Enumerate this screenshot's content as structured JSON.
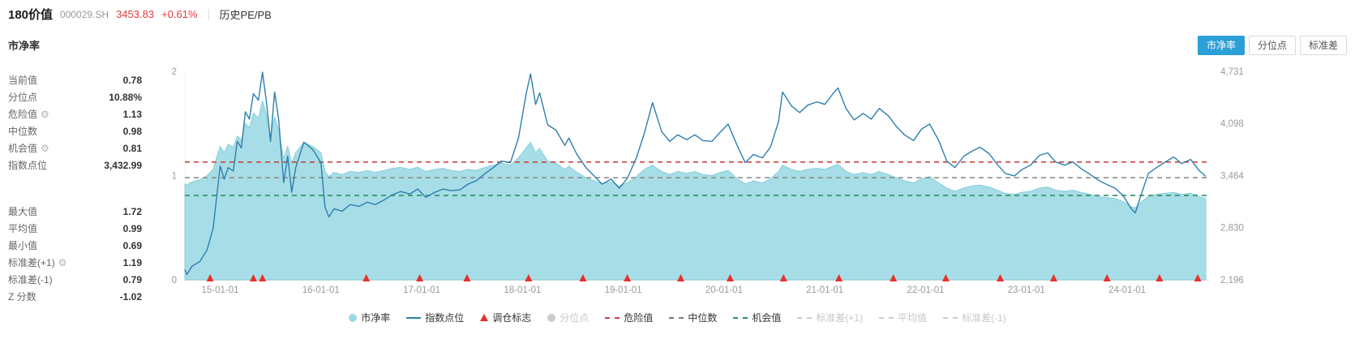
{
  "header": {
    "title": "180价值",
    "code": "000029.SH",
    "price": "3453.83",
    "change": "+0.61%",
    "nav_link": "历史PE/PB"
  },
  "section": {
    "title": "市净率"
  },
  "tabs": [
    {
      "label": "市净率",
      "active": true
    },
    {
      "label": "分位点",
      "active": false
    },
    {
      "label": "标准差",
      "active": false
    }
  ],
  "stats": {
    "group1": [
      {
        "label": "当前值",
        "value": "0.78"
      },
      {
        "label": "分位点",
        "value": "10.88%"
      },
      {
        "label": "危险值",
        "value": "1.13",
        "gear": true
      },
      {
        "label": "中位数",
        "value": "0.98"
      },
      {
        "label": "机会值",
        "value": "0.81",
        "gear": true
      },
      {
        "label": "指数点位",
        "value": "3,432.99"
      }
    ],
    "group2": [
      {
        "label": "最大值",
        "value": "1.72"
      },
      {
        "label": "平均值",
        "value": "0.99"
      },
      {
        "label": "最小值",
        "value": "0.69"
      },
      {
        "label": "标准差(+1)",
        "value": "1.19",
        "gear": true
      },
      {
        "label": "标准差(-1)",
        "value": "0.79"
      },
      {
        "label": "Z 分数",
        "value": "-1.02"
      }
    ]
  },
  "colors": {
    "accent_blue": "#2b9fd6",
    "price_red": "#e23b3b",
    "pb_area": "#a7dde6",
    "pb_stroke": "#86cfdb",
    "index_line": "#2d7fae",
    "marker_red": "#e8302a",
    "danger_line": "#c9463d",
    "median_line": "#8f8f8f",
    "chance_line": "#2f8f63",
    "disabled": "#cccccc"
  },
  "legend": {
    "items": [
      {
        "label": "市净率",
        "type": "dot",
        "color": "#9fd9e2",
        "enabled": true
      },
      {
        "label": "指数点位",
        "type": "line",
        "color": "#2d7fae",
        "enabled": true
      },
      {
        "label": "调仓标志",
        "type": "triangle",
        "color": "#e8302a",
        "enabled": true
      },
      {
        "label": "分位点",
        "type": "dot",
        "color": "#cccccc",
        "enabled": false
      },
      {
        "label": "危险值",
        "type": "dash",
        "color": "#c9463d",
        "enabled": true
      },
      {
        "label": "中位数",
        "type": "dash",
        "color": "#777777",
        "enabled": true
      },
      {
        "label": "机会值",
        "type": "dash",
        "color": "#2f8f63",
        "enabled": true
      },
      {
        "label": "标准差(+1)",
        "type": "dash",
        "color": "#cccccc",
        "enabled": false
      },
      {
        "label": "平均值",
        "type": "dash",
        "color": "#cccccc",
        "enabled": false
      },
      {
        "label": "标准差(-1)",
        "type": "dash",
        "color": "#cccccc",
        "enabled": false
      }
    ]
  },
  "chart_data": {
    "type": "area+line",
    "x_domain": [
      2014.65,
      2024.82
    ],
    "points_format": [
      "year_fraction",
      "市净率(left axis)",
      "指数点位(right axis)"
    ],
    "series": [
      {
        "name": "市净率",
        "type": "area",
        "axis": "left",
        "color": "#a7dde6"
      },
      {
        "name": "指数点位",
        "type": "line",
        "axis": "right",
        "color": "#2d7fae"
      }
    ],
    "points": [
      [
        2014.65,
        0.92,
        2320
      ],
      [
        2014.67,
        0.91,
        2260
      ],
      [
        2014.72,
        0.94,
        2360
      ],
      [
        2014.8,
        0.96,
        2420
      ],
      [
        2014.87,
        1.0,
        2560
      ],
      [
        2014.93,
        1.06,
        2820
      ],
      [
        2015.0,
        1.28,
        3580
      ],
      [
        2015.04,
        1.22,
        3420
      ],
      [
        2015.08,
        1.3,
        3560
      ],
      [
        2015.13,
        1.27,
        3520
      ],
      [
        2015.17,
        1.38,
        3880
      ],
      [
        2015.21,
        1.34,
        3800
      ],
      [
        2015.25,
        1.5,
        4240
      ],
      [
        2015.29,
        1.46,
        4150
      ],
      [
        2015.33,
        1.6,
        4460
      ],
      [
        2015.38,
        1.55,
        4380
      ],
      [
        2015.42,
        1.72,
        4720
      ],
      [
        2015.46,
        1.58,
        4350
      ],
      [
        2015.5,
        1.38,
        3880
      ],
      [
        2015.54,
        1.56,
        4480
      ],
      [
        2015.58,
        1.44,
        4150
      ],
      [
        2015.63,
        1.16,
        3380
      ],
      [
        2015.67,
        1.28,
        3700
      ],
      [
        2015.71,
        1.12,
        3260
      ],
      [
        2015.75,
        1.22,
        3560
      ],
      [
        2015.83,
        1.32,
        3870
      ],
      [
        2015.92,
        1.28,
        3780
      ],
      [
        2016.0,
        1.22,
        3620
      ],
      [
        2016.04,
        1.04,
        3080
      ],
      [
        2016.08,
        0.99,
        2960
      ],
      [
        2016.13,
        1.03,
        3060
      ],
      [
        2016.21,
        1.01,
        3030
      ],
      [
        2016.29,
        1.04,
        3110
      ],
      [
        2016.38,
        1.03,
        3090
      ],
      [
        2016.46,
        1.05,
        3140
      ],
      [
        2016.54,
        1.03,
        3110
      ],
      [
        2016.63,
        1.05,
        3170
      ],
      [
        2016.71,
        1.07,
        3230
      ],
      [
        2016.79,
        1.08,
        3270
      ],
      [
        2016.88,
        1.06,
        3240
      ],
      [
        2016.96,
        1.08,
        3300
      ],
      [
        2017.04,
        1.04,
        3200
      ],
      [
        2017.13,
        1.06,
        3260
      ],
      [
        2017.21,
        1.07,
        3300
      ],
      [
        2017.29,
        1.05,
        3280
      ],
      [
        2017.38,
        1.04,
        3290
      ],
      [
        2017.46,
        1.06,
        3360
      ],
      [
        2017.54,
        1.05,
        3400
      ],
      [
        2017.63,
        1.08,
        3490
      ],
      [
        2017.71,
        1.1,
        3560
      ],
      [
        2017.79,
        1.12,
        3640
      ],
      [
        2017.88,
        1.1,
        3620
      ],
      [
        2017.96,
        1.17,
        3920
      ],
      [
        2018.04,
        1.27,
        4480
      ],
      [
        2018.08,
        1.32,
        4700
      ],
      [
        2018.13,
        1.22,
        4330
      ],
      [
        2018.17,
        1.26,
        4470
      ],
      [
        2018.25,
        1.14,
        4080
      ],
      [
        2018.33,
        1.12,
        4020
      ],
      [
        2018.42,
        1.06,
        3830
      ],
      [
        2018.46,
        1.09,
        3920
      ],
      [
        2018.54,
        1.03,
        3720
      ],
      [
        2018.63,
        0.98,
        3560
      ],
      [
        2018.71,
        0.95,
        3460
      ],
      [
        2018.79,
        0.92,
        3360
      ],
      [
        2018.88,
        0.94,
        3420
      ],
      [
        2018.96,
        0.9,
        3310
      ],
      [
        2019.04,
        0.93,
        3430
      ],
      [
        2019.13,
        0.99,
        3680
      ],
      [
        2019.21,
        1.06,
        3980
      ],
      [
        2019.29,
        1.1,
        4350
      ],
      [
        2019.38,
        1.04,
        4000
      ],
      [
        2019.46,
        1.01,
        3880
      ],
      [
        2019.54,
        1.04,
        3960
      ],
      [
        2019.63,
        1.02,
        3900
      ],
      [
        2019.71,
        1.04,
        3960
      ],
      [
        2019.79,
        1.01,
        3890
      ],
      [
        2019.88,
        1.0,
        3880
      ],
      [
        2019.96,
        1.03,
        3990
      ],
      [
        2020.04,
        1.05,
        4090
      ],
      [
        2020.13,
        0.97,
        3830
      ],
      [
        2020.21,
        0.92,
        3620
      ],
      [
        2020.29,
        0.95,
        3720
      ],
      [
        2020.38,
        0.93,
        3680
      ],
      [
        2020.46,
        0.97,
        3810
      ],
      [
        2020.54,
        1.04,
        4120
      ],
      [
        2020.58,
        1.1,
        4480
      ],
      [
        2020.67,
        1.06,
        4310
      ],
      [
        2020.75,
        1.04,
        4230
      ],
      [
        2020.83,
        1.06,
        4320
      ],
      [
        2020.92,
        1.07,
        4360
      ],
      [
        2021.0,
        1.06,
        4330
      ],
      [
        2021.08,
        1.09,
        4460
      ],
      [
        2021.13,
        1.11,
        4530
      ],
      [
        2021.21,
        1.04,
        4280
      ],
      [
        2021.29,
        1.01,
        4140
      ],
      [
        2021.38,
        1.03,
        4220
      ],
      [
        2021.46,
        1.01,
        4150
      ],
      [
        2021.54,
        1.04,
        4280
      ],
      [
        2021.63,
        1.01,
        4190
      ],
      [
        2021.71,
        0.98,
        4060
      ],
      [
        2021.79,
        0.95,
        3960
      ],
      [
        2021.88,
        0.93,
        3890
      ],
      [
        2021.96,
        0.97,
        4030
      ],
      [
        2022.04,
        0.99,
        4090
      ],
      [
        2022.13,
        0.93,
        3890
      ],
      [
        2022.21,
        0.88,
        3640
      ],
      [
        2022.29,
        0.85,
        3560
      ],
      [
        2022.38,
        0.88,
        3700
      ],
      [
        2022.46,
        0.9,
        3760
      ],
      [
        2022.54,
        0.91,
        3810
      ],
      [
        2022.63,
        0.89,
        3730
      ],
      [
        2022.71,
        0.86,
        3600
      ],
      [
        2022.79,
        0.83,
        3490
      ],
      [
        2022.88,
        0.82,
        3460
      ],
      [
        2022.96,
        0.84,
        3540
      ],
      [
        2023.04,
        0.85,
        3590
      ],
      [
        2023.13,
        0.88,
        3710
      ],
      [
        2023.21,
        0.89,
        3740
      ],
      [
        2023.29,
        0.86,
        3630
      ],
      [
        2023.38,
        0.85,
        3590
      ],
      [
        2023.46,
        0.86,
        3630
      ],
      [
        2023.54,
        0.84,
        3550
      ],
      [
        2023.63,
        0.82,
        3480
      ],
      [
        2023.71,
        0.8,
        3410
      ],
      [
        2023.79,
        0.79,
        3360
      ],
      [
        2023.88,
        0.78,
        3310
      ],
      [
        2023.96,
        0.75,
        3220
      ],
      [
        2024.04,
        0.7,
        3060
      ],
      [
        2024.08,
        0.69,
        3010
      ],
      [
        2024.13,
        0.74,
        3200
      ],
      [
        2024.21,
        0.8,
        3490
      ],
      [
        2024.29,
        0.82,
        3560
      ],
      [
        2024.38,
        0.83,
        3630
      ],
      [
        2024.46,
        0.84,
        3690
      ],
      [
        2024.54,
        0.82,
        3610
      ],
      [
        2024.63,
        0.83,
        3660
      ],
      [
        2024.71,
        0.8,
        3530
      ],
      [
        2024.78,
        0.78,
        3454
      ]
    ],
    "markers": {
      "name": "调仓标志",
      "shape": "triangle-up",
      "color": "#e8302a",
      "times": [
        2014.9,
        2015.33,
        2015.42,
        2016.45,
        2016.98,
        2017.45,
        2018.06,
        2018.6,
        2019.04,
        2019.57,
        2020.06,
        2020.59,
        2021.14,
        2021.68,
        2022.2,
        2022.74,
        2023.27,
        2023.8,
        2024.32,
        2024.7
      ]
    },
    "ref_lines": [
      {
        "name": "危险值",
        "value": 1.13,
        "color": "#c9463d"
      },
      {
        "name": "中位数",
        "value": 0.98,
        "color": "#8f8f8f"
      },
      {
        "name": "机会值",
        "value": 0.81,
        "color": "#2f8f63"
      }
    ],
    "left_axis": {
      "range": [
        0,
        2
      ],
      "ticks": [
        0,
        1,
        2
      ]
    },
    "right_axis": {
      "range": [
        2196,
        4731
      ],
      "ticks": [
        {
          "value": 2196,
          "label": "2,196"
        },
        {
          "value": 2830,
          "label": "2,830"
        },
        {
          "value": 3464,
          "label": "3,464"
        },
        {
          "value": 4098,
          "label": "4,098"
        },
        {
          "value": 4731,
          "label": "4,731"
        }
      ]
    },
    "x_ticks": [
      {
        "t": 2015,
        "label": "15-01-01"
      },
      {
        "t": 2016,
        "label": "16-01-01"
      },
      {
        "t": 2017,
        "label": "17-01-01"
      },
      {
        "t": 2018,
        "label": "18-01-01"
      },
      {
        "t": 2019,
        "label": "19-01-01"
      },
      {
        "t": 2020,
        "label": "20-01-01"
      },
      {
        "t": 2021,
        "label": "21-01-01"
      },
      {
        "t": 2022,
        "label": "22-01-01"
      },
      {
        "t": 2023,
        "label": "23-01-01"
      },
      {
        "t": 2024,
        "label": "24-01-01"
      }
    ]
  }
}
